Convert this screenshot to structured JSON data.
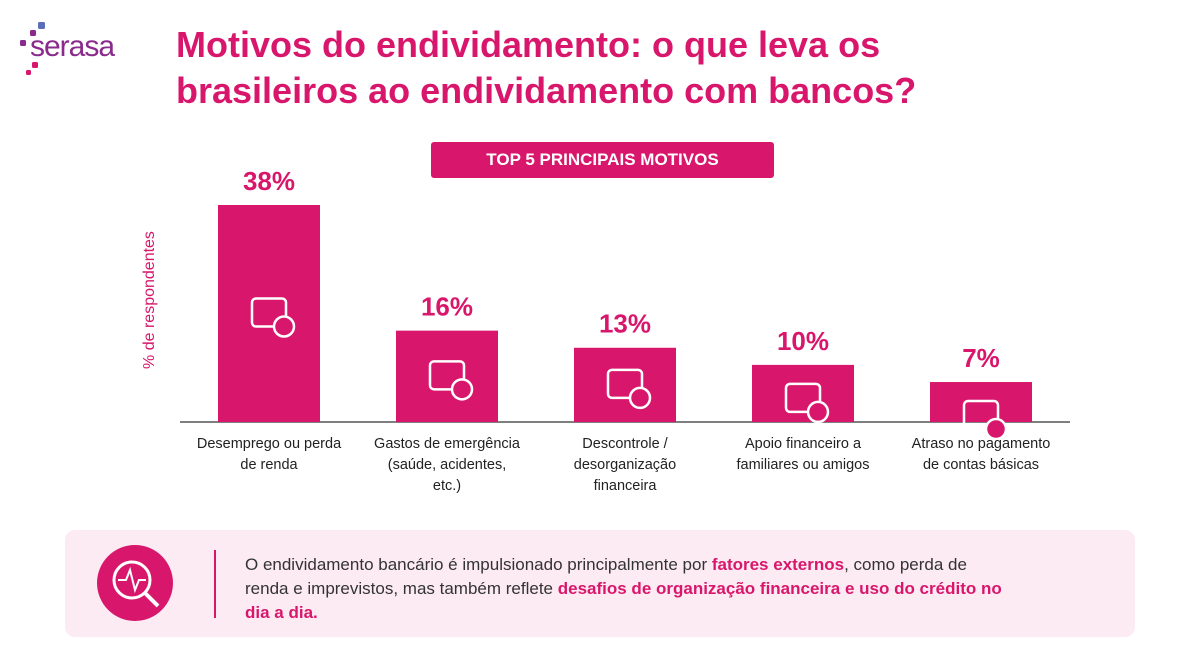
{
  "logo": "serasa",
  "chart_data": {
    "type": "bar",
    "title": "Motivos do endividamento: o que leva os brasileiros ao endividamento com bancos?",
    "subtitle": "TOP 5 PRINCIPAIS MOTIVOS",
    "y_label": "% de respondentes",
    "categories": [
      "Desemprego ou perda de renda",
      "Gastos de emergência (saúde, acidentes, etc.)",
      "Descontrole / desorganização financeira",
      "Apoio financeiro a familiares ou amigos",
      "Atraso no pagamento de contas básicas"
    ],
    "values": [
      38,
      16,
      13,
      10,
      7
    ],
    "value_labels": [
      "38%",
      "16%",
      "13%",
      "10%",
      "7%"
    ],
    "color": "#d8176c"
  },
  "note": {
    "parts": [
      {
        "text": "O endividamento bancário é impulsionado principalmente por ",
        "strong": false
      },
      {
        "text": "fatores externos",
        "strong": true
      },
      {
        "text": ", como perda de renda e imprevistos, mas também reflete ",
        "strong": false
      },
      {
        "text": "desafios de organização financeira e uso do crédito no dia a dia.",
        "strong": true
      }
    ]
  }
}
